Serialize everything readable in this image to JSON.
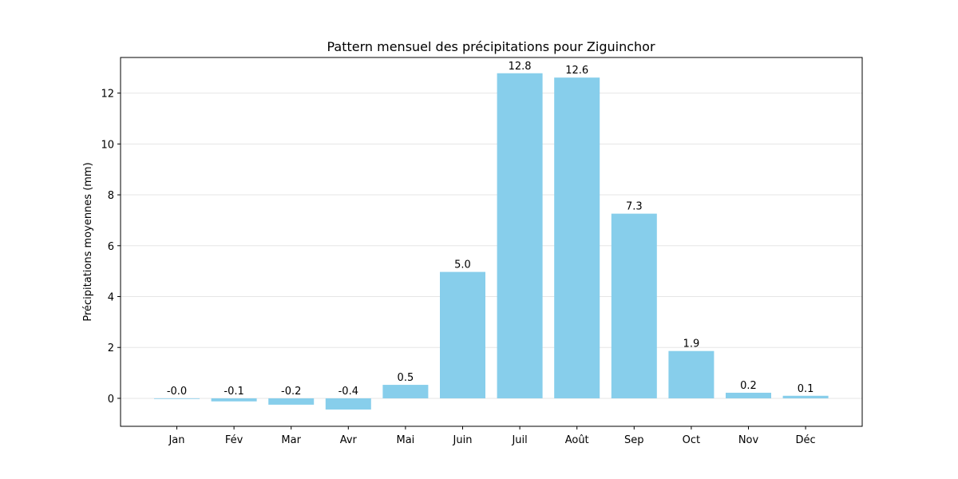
{
  "chart_data": {
    "type": "bar",
    "title": "Pattern mensuel des précipitations pour Ziguinchor",
    "xlabel": "",
    "ylabel": "Précipitations moyennes (mm)",
    "categories": [
      "Jan",
      "Fév",
      "Mar",
      "Avr",
      "Mai",
      "Juin",
      "Juil",
      "Août",
      "Sep",
      "Oct",
      "Nov",
      "Déc"
    ],
    "values": [
      -0.02,
      -0.12,
      -0.25,
      -0.44,
      0.53,
      4.97,
      12.78,
      12.61,
      7.26,
      1.86,
      0.22,
      0.1
    ],
    "data_labels": [
      "-0.0",
      "-0.1",
      "-0.2",
      "-0.4",
      "0.5",
      "5.0",
      "12.8",
      "12.6",
      "7.3",
      "1.9",
      "0.2",
      "0.1"
    ],
    "ylim": [
      -1.1,
      13.4
    ],
    "yticks": [
      0,
      2,
      4,
      6,
      8,
      10,
      12
    ],
    "ytick_labels": [
      "0",
      "2",
      "4",
      "6",
      "8",
      "10",
      "12"
    ],
    "grid": "y-axis",
    "legend": "none",
    "colors": {
      "bar": "#87ceeb",
      "grid": "#e6e6e6",
      "axis": "#000000"
    }
  }
}
